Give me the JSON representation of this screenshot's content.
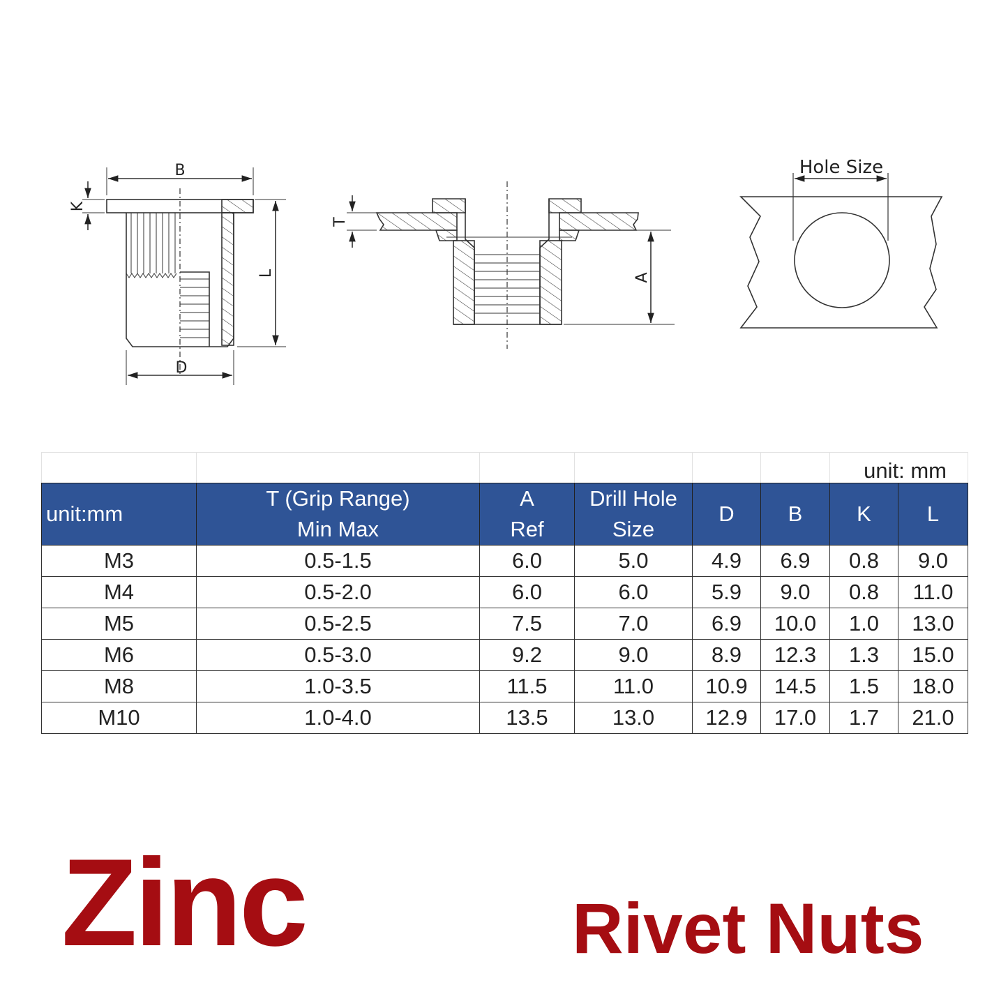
{
  "drawing": {
    "labels": {
      "B": "B",
      "K": "K",
      "L": "L",
      "D": "D",
      "T": "T",
      "A": "A",
      "hole_size": "Hole Size"
    }
  },
  "table": {
    "unit_note": "unit: mm",
    "headers": {
      "size": "unit:mm",
      "t_line1": "T (Grip Range)",
      "t_line2": "Min Max",
      "a_line1": "A",
      "a_line2": "Ref",
      "drill_line1": "Drill Hole",
      "drill_line2": "Size",
      "d": "D",
      "b": "B",
      "k": "K",
      "l": "L"
    },
    "rows": [
      [
        "M3",
        "0.5-1.5",
        "6.0",
        "5.0",
        "4.9",
        "6.9",
        "0.8",
        "9.0"
      ],
      [
        "M4",
        "0.5-2.0",
        "6.0",
        "6.0",
        "5.9",
        "9.0",
        "0.8",
        "11.0"
      ],
      [
        "M5",
        "0.5-2.5",
        "7.5",
        "7.0",
        "6.9",
        "10.0",
        "1.0",
        "13.0"
      ],
      [
        "M6",
        "0.5-3.0",
        "9.2",
        "9.0",
        "8.9",
        "12.3",
        "1.3",
        "15.0"
      ],
      [
        "M8",
        "1.0-3.5",
        "11.5",
        "11.0",
        "10.9",
        "14.5",
        "1.5",
        "18.0"
      ],
      [
        "M10",
        "1.0-4.0",
        "13.5",
        "13.0",
        "12.9",
        "17.0",
        "1.7",
        "21.0"
      ]
    ],
    "header_color": "#2F5496"
  },
  "title": {
    "material": "Zinc",
    "product": "Rivet Nuts",
    "color": "#A50D12"
  }
}
